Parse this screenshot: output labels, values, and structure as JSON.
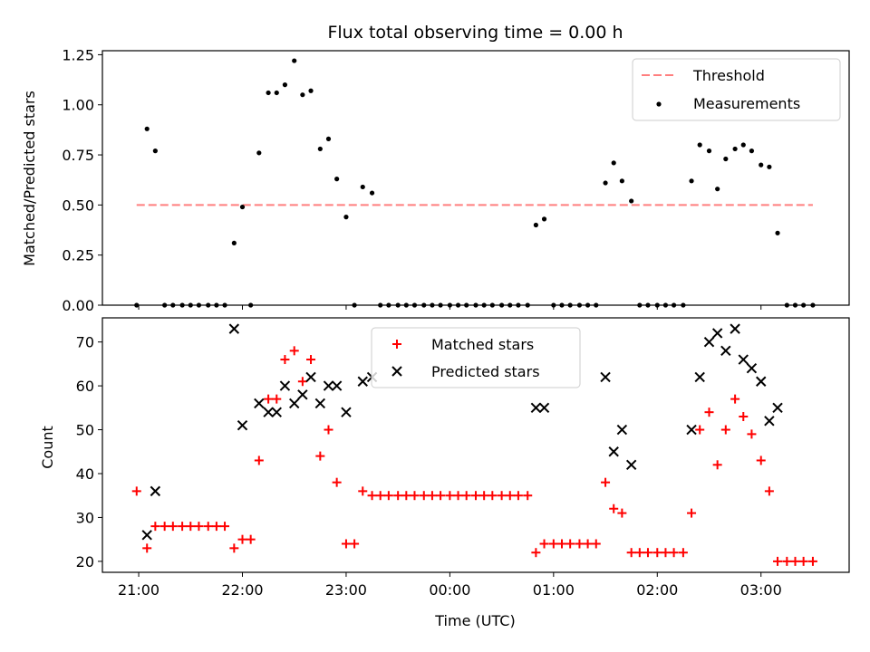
{
  "chart_data": [
    {
      "type": "scatter",
      "title": "Flux total observing time = 0.00 h",
      "xlabel": "",
      "ylabel": "Matched/Predicted stars",
      "ylim": [
        0,
        1.27
      ],
      "yticks": [
        "0.00",
        "0.25",
        "0.50",
        "0.75",
        "1.00",
        "1.25"
      ],
      "legend_position": "top-right",
      "threshold": {
        "name": "Threshold",
        "y": 0.5,
        "x_start": -0.02,
        "x_end": 6.5,
        "color": "#ff7f7f"
      },
      "series": [
        {
          "name": "Measurements",
          "color": "#000000",
          "points": [
            [
              -0.02,
              0
            ],
            [
              0.08,
              0.88
            ],
            [
              0.16,
              0.77
            ],
            [
              0.25,
              0
            ],
            [
              0.33,
              0
            ],
            [
              0.42,
              0
            ],
            [
              0.5,
              0
            ],
            [
              0.58,
              0
            ],
            [
              0.67,
              0
            ],
            [
              0.75,
              0
            ],
            [
              0.83,
              0
            ],
            [
              0.92,
              0.31
            ],
            [
              1.0,
              0.49
            ],
            [
              1.08,
              0
            ],
            [
              1.16,
              0.76
            ],
            [
              1.25,
              1.06
            ],
            [
              1.33,
              1.06
            ],
            [
              1.41,
              1.1
            ],
            [
              1.5,
              1.22
            ],
            [
              1.58,
              1.05
            ],
            [
              1.66,
              1.07
            ],
            [
              1.75,
              0.78
            ],
            [
              1.83,
              0.83
            ],
            [
              1.91,
              0.63
            ],
            [
              2.0,
              0.44
            ],
            [
              2.08,
              0
            ],
            [
              2.16,
              0.59
            ],
            [
              2.25,
              0.56
            ],
            [
              2.33,
              0
            ],
            [
              2.41,
              0
            ],
            [
              2.5,
              0
            ],
            [
              2.58,
              0
            ],
            [
              2.66,
              0
            ],
            [
              2.75,
              0
            ],
            [
              2.83,
              0
            ],
            [
              2.91,
              0
            ],
            [
              3.0,
              0
            ],
            [
              3.08,
              0
            ],
            [
              3.16,
              0
            ],
            [
              3.25,
              0
            ],
            [
              3.33,
              0
            ],
            [
              3.41,
              0
            ],
            [
              3.5,
              0
            ],
            [
              3.58,
              0
            ],
            [
              3.66,
              0
            ],
            [
              3.75,
              0
            ],
            [
              3.83,
              0.4
            ],
            [
              3.91,
              0.43
            ],
            [
              4.0,
              0
            ],
            [
              4.08,
              0
            ],
            [
              4.16,
              0
            ],
            [
              4.25,
              0
            ],
            [
              4.33,
              0
            ],
            [
              4.41,
              0
            ],
            [
              4.5,
              0.61
            ],
            [
              4.58,
              0.71
            ],
            [
              4.66,
              0.62
            ],
            [
              4.75,
              0.52
            ],
            [
              4.83,
              0
            ],
            [
              4.91,
              0
            ],
            [
              5.0,
              0
            ],
            [
              5.08,
              0
            ],
            [
              5.16,
              0
            ],
            [
              5.25,
              0
            ],
            [
              5.33,
              0.62
            ],
            [
              5.41,
              0.8
            ],
            [
              5.5,
              0.77
            ],
            [
              5.58,
              0.58
            ],
            [
              5.66,
              0.73
            ],
            [
              5.75,
              0.78
            ],
            [
              5.83,
              0.8
            ],
            [
              5.91,
              0.77
            ],
            [
              6.0,
              0.7
            ],
            [
              6.08,
              0.69
            ],
            [
              6.16,
              0.36
            ],
            [
              6.25,
              0
            ],
            [
              6.33,
              0
            ],
            [
              6.41,
              0
            ],
            [
              6.5,
              0
            ]
          ]
        }
      ]
    },
    {
      "type": "scatter",
      "title": "",
      "xlabel": "Time (UTC)",
      "ylabel": "Count",
      "ylim": [
        17.5,
        75.5
      ],
      "yticks": [
        "20",
        "30",
        "40",
        "50",
        "60",
        "70"
      ],
      "xlim": [
        -0.35,
        6.85
      ],
      "xticks": [
        {
          "v": 0,
          "label": "21:00"
        },
        {
          "v": 1,
          "label": "22:00"
        },
        {
          "v": 2,
          "label": "23:00"
        },
        {
          "v": 3,
          "label": "00:00"
        },
        {
          "v": 4,
          "label": "01:00"
        },
        {
          "v": 5,
          "label": "02:00"
        },
        {
          "v": 6,
          "label": "03:00"
        }
      ],
      "legend_position": "top-center",
      "series": [
        {
          "name": "Matched stars",
          "marker": "plus",
          "color": "#ff0000",
          "points": [
            [
              -0.02,
              36
            ],
            [
              0.08,
              23
            ],
            [
              0.16,
              28
            ],
            [
              0.25,
              28
            ],
            [
              0.33,
              28
            ],
            [
              0.42,
              28
            ],
            [
              0.5,
              28
            ],
            [
              0.58,
              28
            ],
            [
              0.67,
              28
            ],
            [
              0.75,
              28
            ],
            [
              0.83,
              28
            ],
            [
              0.92,
              23
            ],
            [
              1.0,
              25
            ],
            [
              1.08,
              25
            ],
            [
              1.16,
              43
            ],
            [
              1.25,
              57
            ],
            [
              1.33,
              57
            ],
            [
              1.41,
              66
            ],
            [
              1.5,
              68
            ],
            [
              1.58,
              61
            ],
            [
              1.66,
              66
            ],
            [
              1.75,
              44
            ],
            [
              1.83,
              50
            ],
            [
              1.91,
              38
            ],
            [
              2.0,
              24
            ],
            [
              2.08,
              24
            ],
            [
              2.16,
              36
            ],
            [
              2.25,
              35
            ],
            [
              2.33,
              35
            ],
            [
              2.41,
              35
            ],
            [
              2.5,
              35
            ],
            [
              2.58,
              35
            ],
            [
              2.66,
              35
            ],
            [
              2.75,
              35
            ],
            [
              2.83,
              35
            ],
            [
              2.91,
              35
            ],
            [
              3.0,
              35
            ],
            [
              3.08,
              35
            ],
            [
              3.16,
              35
            ],
            [
              3.25,
              35
            ],
            [
              3.33,
              35
            ],
            [
              3.41,
              35
            ],
            [
              3.5,
              35
            ],
            [
              3.58,
              35
            ],
            [
              3.66,
              35
            ],
            [
              3.75,
              35
            ],
            [
              3.83,
              22
            ],
            [
              3.91,
              24
            ],
            [
              4.0,
              24
            ],
            [
              4.08,
              24
            ],
            [
              4.16,
              24
            ],
            [
              4.25,
              24
            ],
            [
              4.33,
              24
            ],
            [
              4.41,
              24
            ],
            [
              4.5,
              38
            ],
            [
              4.58,
              32
            ],
            [
              4.66,
              31
            ],
            [
              4.75,
              22
            ],
            [
              4.83,
              22
            ],
            [
              4.91,
              22
            ],
            [
              5.0,
              22
            ],
            [
              5.08,
              22
            ],
            [
              5.16,
              22
            ],
            [
              5.25,
              22
            ],
            [
              5.33,
              31
            ],
            [
              5.41,
              50
            ],
            [
              5.5,
              54
            ],
            [
              5.58,
              42
            ],
            [
              5.66,
              50
            ],
            [
              5.75,
              57
            ],
            [
              5.83,
              53
            ],
            [
              5.91,
              49
            ],
            [
              6.0,
              43
            ],
            [
              6.08,
              36
            ],
            [
              6.16,
              20
            ],
            [
              6.25,
              20
            ],
            [
              6.33,
              20
            ],
            [
              6.41,
              20
            ],
            [
              6.5,
              20
            ]
          ]
        },
        {
          "name": "Predicted stars",
          "marker": "x",
          "color": "#000000",
          "points": [
            [
              0.08,
              26
            ],
            [
              0.16,
              36
            ],
            [
              0.92,
              73
            ],
            [
              1.0,
              51
            ],
            [
              1.16,
              56
            ],
            [
              1.25,
              54
            ],
            [
              1.33,
              54
            ],
            [
              1.41,
              60
            ],
            [
              1.5,
              56
            ],
            [
              1.58,
              58
            ],
            [
              1.66,
              62
            ],
            [
              1.75,
              56
            ],
            [
              1.83,
              60
            ],
            [
              1.91,
              60
            ],
            [
              2.0,
              54
            ],
            [
              2.16,
              61
            ],
            [
              2.25,
              62
            ],
            [
              3.83,
              55
            ],
            [
              3.91,
              55
            ],
            [
              4.5,
              62
            ],
            [
              4.58,
              45
            ],
            [
              4.66,
              50
            ],
            [
              4.75,
              42
            ],
            [
              5.33,
              50
            ],
            [
              5.41,
              62
            ],
            [
              5.5,
              70
            ],
            [
              5.58,
              72
            ],
            [
              5.66,
              68
            ],
            [
              5.75,
              73
            ],
            [
              5.83,
              66
            ],
            [
              5.91,
              64
            ],
            [
              6.0,
              61
            ],
            [
              6.08,
              52
            ],
            [
              6.16,
              55
            ]
          ]
        }
      ]
    }
  ]
}
